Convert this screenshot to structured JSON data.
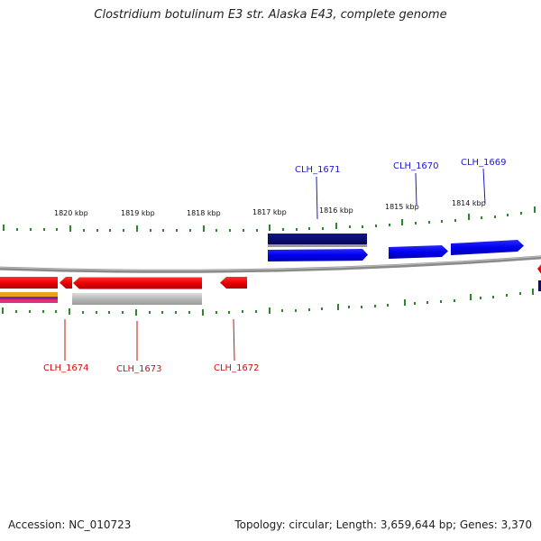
{
  "title": "Clostridium botulinum E3 str. Alaska E43, complete genome",
  "footer": {
    "accession": "Accession: NC_010723",
    "summary": "Topology: circular; Length: 3,659,644 bp; Genes: 3,370"
  },
  "scale_labels": [
    "1820 kbp",
    "1819 kbp",
    "1818 kbp",
    "1817 kbp",
    "1816 kbp",
    "1815 kbp",
    "1814 kbp"
  ],
  "genes_top": [
    "CLH_1671",
    "CLH_1670",
    "CLH_1669"
  ],
  "genes_bottom": [
    "CLH_1674",
    "CLH_1673",
    "CLH_1672"
  ],
  "colors": {
    "forward_gene": "#0000ee",
    "reverse_gene": "#ee0000",
    "cds_dark": "#0a0a78",
    "backbone": "#888888",
    "tick": "#2a8a2a",
    "label_top": "#1a1ad0",
    "label_bottom": "#cc1111"
  }
}
